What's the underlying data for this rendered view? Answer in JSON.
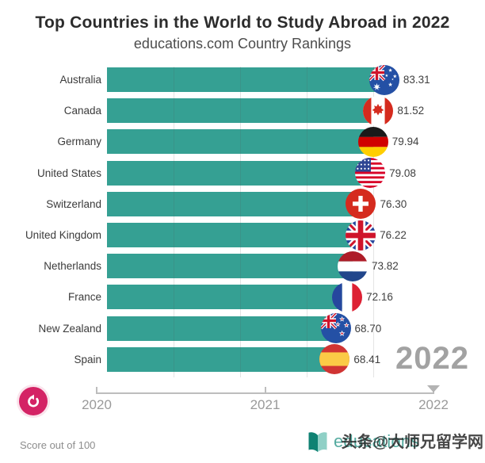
{
  "header": {
    "title": "Top Countries in the World to Study Abroad in 2022",
    "subtitle": "educations.com Country Rankings"
  },
  "chart_data": {
    "type": "bar",
    "orientation": "horizontal",
    "title": "Top Countries in the World to Study Abroad in 2022",
    "subtitle": "educations.com Country Rankings",
    "categories": [
      "Australia",
      "Canada",
      "Germany",
      "United States",
      "Switzerland",
      "United Kingdom",
      "Netherlands",
      "France",
      "New Zealand",
      "Spain"
    ],
    "values": [
      83.31,
      81.52,
      79.94,
      79.08,
      76.3,
      76.22,
      73.82,
      72.16,
      68.7,
      68.41
    ],
    "value_labels": [
      "83.31",
      "81.52",
      "79.94",
      "79.08",
      "76.30",
      "76.22",
      "73.82",
      "72.16",
      "68.70",
      "68.41"
    ],
    "flags": [
      "australia",
      "canada",
      "germany",
      "united-states",
      "switzerland",
      "united-kingdom",
      "netherlands",
      "france",
      "new-zealand",
      "spain"
    ],
    "xlim": [
      0,
      100
    ],
    "gridline_values": [
      20,
      40,
      60,
      80
    ],
    "grid": true,
    "legend": false,
    "bar_color": "#35a093",
    "frame_year": "2022"
  },
  "year_overlay": "2022",
  "timeline": {
    "ticks": [
      "2020",
      "2021",
      "2022"
    ],
    "current": "2022"
  },
  "controls": {
    "replay_icon": "rotate-ccw-icon"
  },
  "footer": {
    "note": "Score out of 100",
    "logo_text": "educations",
    "watermark": "头条@大师兄留学网"
  },
  "colors": {
    "bar": "#35a093",
    "year_overlay": "#a2a2a2",
    "replay_button": "#d42365",
    "logo": "#55aba0"
  }
}
